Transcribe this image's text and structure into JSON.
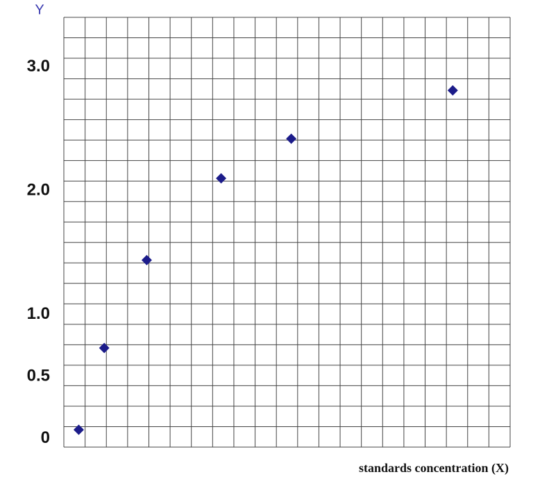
{
  "chart_data": {
    "type": "scatter",
    "y_label": "Y",
    "x_label": "standards concentration (X)",
    "color": "#1c1c8a",
    "xlim": [
      0,
      21
    ],
    "ylim": [
      -0.07,
      3.4
    ],
    "yticks": [
      0,
      {
        "value": 0.5,
        "label": "0.5"
      },
      {
        "value": 1,
        "label": "1.0"
      },
      {
        "value": 2,
        "label": "2.0"
      },
      {
        "value": 3,
        "label": "3.0"
      }
    ],
    "x": [
      0.7,
      1.9,
      3.9,
      7.4,
      10.7,
      18.3
    ],
    "values": [
      0.07,
      0.73,
      1.44,
      2.1,
      2.42,
      2.81
    ]
  }
}
